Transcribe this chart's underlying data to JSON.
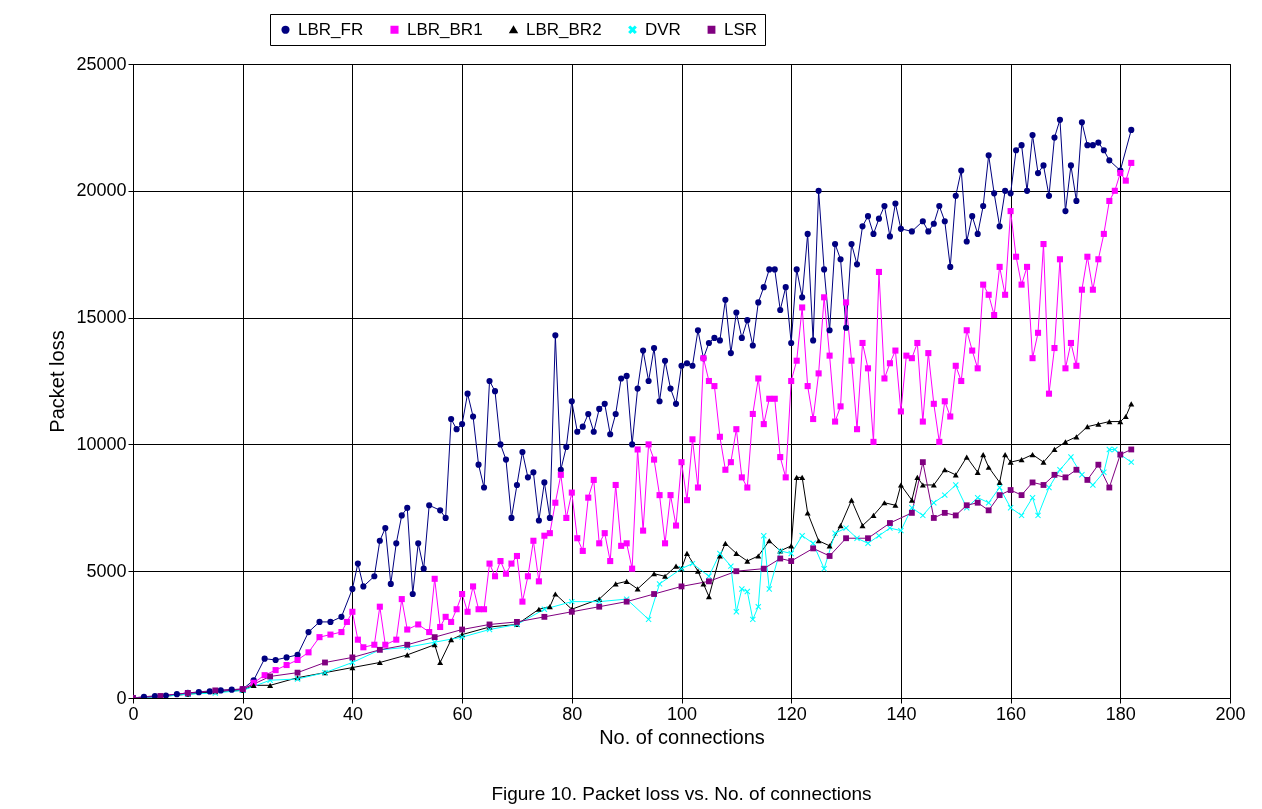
{
  "chart_data": {
    "type": "line",
    "xlabel": "No. of connections",
    "ylabel": "Packet loss",
    "annotations": [
      "Figure 10. Packet loss vs. No. of connections"
    ],
    "xlim": [
      0,
      200
    ],
    "xticks": [
      0,
      20,
      40,
      60,
      80,
      100,
      120,
      140,
      160,
      180,
      200
    ],
    "ylim": [
      0,
      25000
    ],
    "yticks": [
      0,
      5000,
      10000,
      15000,
      20000,
      25000
    ],
    "grid": true,
    "legend": "top",
    "line_style": "solid",
    "series": [
      {
        "name": "LBR_FR",
        "color": "#000080",
        "marker": "circle",
        "x": [
          0,
          2,
          4,
          6,
          8,
          10,
          12,
          14,
          16,
          18,
          20,
          22,
          24,
          26,
          28,
          30,
          32,
          34,
          36,
          38,
          40,
          41,
          42,
          44,
          45,
          46,
          47,
          48,
          49,
          50,
          51,
          52,
          53,
          54,
          56,
          57,
          58,
          59,
          60,
          61,
          62,
          63,
          64,
          65,
          66,
          67,
          68,
          69,
          70,
          71,
          72,
          73,
          74,
          75,
          76,
          77,
          78,
          79,
          80,
          81,
          82,
          83,
          84,
          85,
          86,
          87,
          88,
          89,
          90,
          91,
          92,
          93,
          94,
          95,
          96,
          97,
          98,
          99,
          100,
          101,
          102,
          103,
          104,
          105,
          106,
          107,
          108,
          109,
          110,
          111,
          112,
          113,
          114,
          115,
          116,
          117,
          118,
          119,
          120,
          121,
          122,
          123,
          124,
          125,
          126,
          127,
          128,
          129,
          130,
          131,
          132,
          133,
          134,
          135,
          136,
          137,
          138,
          139,
          140,
          142,
          144,
          145,
          146,
          147,
          148,
          149,
          150,
          151,
          152,
          153,
          154,
          155,
          156,
          157,
          158,
          159,
          160,
          161,
          162,
          163,
          164,
          165,
          166,
          167,
          168,
          169,
          170,
          171,
          172,
          173,
          174,
          175,
          176,
          177,
          178,
          180,
          182
        ],
        "values": [
          0,
          50,
          80,
          100,
          150,
          200,
          230,
          260,
          300,
          330,
          350,
          700,
          1550,
          1500,
          1600,
          1700,
          2600,
          3000,
          3000,
          3200,
          4300,
          5300,
          4400,
          4800,
          6200,
          6700,
          4500,
          6100,
          7200,
          7500,
          4100,
          6100,
          5100,
          7600,
          7400,
          7100,
          11000,
          10600,
          10800,
          12000,
          11100,
          9200,
          8300,
          12500,
          12100,
          10000,
          9400,
          7100,
          8400,
          9700,
          8700,
          8900,
          7000,
          8500,
          7100,
          14300,
          9000,
          9900,
          11700,
          10500,
          10700,
          11200,
          10500,
          11400,
          11600,
          10400,
          11200,
          12600,
          12700,
          10000,
          12200,
          13700,
          12500,
          13800,
          11700,
          13300,
          12200,
          11600,
          13100,
          13200,
          13100,
          14500,
          13400,
          14000,
          14200,
          14100,
          15700,
          13600,
          15200,
          14200,
          14900,
          13900,
          15600,
          16200,
          16900,
          16900,
          15300,
          16200,
          14000,
          16900,
          15800,
          18300,
          14100,
          20000,
          16900,
          14500,
          17900,
          17300,
          14600,
          17900,
          17100,
          18600,
          19000,
          18300,
          18900,
          19400,
          18200,
          19500,
          18500,
          18400,
          18800,
          18400,
          18700,
          19400,
          18800,
          17000,
          19800,
          20800,
          18000,
          19000,
          18300,
          19400,
          21400,
          19900,
          18600,
          20000,
          19900,
          21600,
          21800,
          20000,
          22200,
          20700,
          21000,
          19800,
          22100,
          22800,
          19200,
          21000,
          19600,
          22700,
          21800,
          21800,
          21900,
          21600,
          21200,
          20800,
          22400
        ]
      },
      {
        "name": "LBR_BR1",
        "color": "#ff00ff",
        "marker": "square",
        "x": [
          0,
          10,
          20,
          22,
          24,
          26,
          28,
          30,
          32,
          34,
          36,
          38,
          39,
          40,
          41,
          42,
          44,
          45,
          46,
          48,
          49,
          50,
          52,
          54,
          55,
          56,
          57,
          58,
          59,
          60,
          61,
          62,
          63,
          64,
          65,
          66,
          67,
          68,
          69,
          70,
          71,
          72,
          73,
          74,
          75,
          76,
          77,
          78,
          79,
          80,
          81,
          82,
          83,
          84,
          85,
          86,
          87,
          88,
          89,
          90,
          91,
          92,
          93,
          94,
          95,
          96,
          97,
          98,
          99,
          100,
          101,
          102,
          103,
          104,
          105,
          106,
          107,
          108,
          109,
          110,
          111,
          112,
          113,
          114,
          115,
          116,
          117,
          118,
          119,
          120,
          121,
          122,
          123,
          124,
          125,
          126,
          127,
          128,
          129,
          130,
          131,
          132,
          133,
          134,
          135,
          136,
          137,
          138,
          139,
          140,
          141,
          142,
          143,
          144,
          145,
          146,
          147,
          148,
          149,
          150,
          151,
          152,
          153,
          154,
          155,
          156,
          157,
          158,
          159,
          160,
          161,
          162,
          163,
          164,
          165,
          166,
          167,
          168,
          169,
          170,
          171,
          172,
          173,
          174,
          175,
          176,
          177,
          178,
          179,
          180,
          181,
          182
        ],
        "values": [
          0,
          180,
          330,
          600,
          900,
          1100,
          1300,
          1500,
          1800,
          2400,
          2500,
          2600,
          3000,
          3400,
          2300,
          2000,
          2100,
          3600,
          2100,
          2300,
          3900,
          2700,
          2900,
          2600,
          4700,
          2800,
          3200,
          3000,
          3500,
          4100,
          3400,
          4400,
          3500,
          3500,
          5300,
          4800,
          5400,
          4900,
          5300,
          5600,
          3800,
          4800,
          6200,
          4600,
          6400,
          6500,
          7700,
          8800,
          7100,
          8100,
          6300,
          5800,
          7900,
          8600,
          6100,
          6500,
          5400,
          8400,
          6000,
          6100,
          5100,
          9800,
          6600,
          10000,
          9400,
          8000,
          6100,
          8000,
          6800,
          9300,
          7800,
          10200,
          8300,
          13400,
          12500,
          12300,
          10300,
          9000,
          9300,
          10600,
          8700,
          8300,
          11200,
          12600,
          10800,
          11800,
          11800,
          9500,
          8700,
          12500,
          13300,
          15400,
          12300,
          11000,
          12800,
          15800,
          13500,
          10900,
          11500,
          15600,
          13300,
          10600,
          14000,
          13000,
          10100,
          16800,
          12600,
          13200,
          13700,
          11300,
          13500,
          13400,
          14000,
          10900,
          13600,
          11600,
          10100,
          11700,
          11100,
          13100,
          12500,
          14500,
          13700,
          13000,
          16300,
          15900,
          15100,
          17000,
          15900,
          19200,
          17400,
          16300,
          17000,
          13400,
          14400,
          17900,
          12000,
          13800,
          17300,
          13000,
          14000,
          13100,
          16100,
          17400,
          16100,
          17300,
          18300,
          19600,
          20000,
          20700,
          20400,
          21100
        ]
      },
      {
        "name": "LBR_BR2",
        "color": "#000000",
        "marker": "triangle",
        "x": [
          0,
          5,
          10,
          15,
          20,
          22,
          25,
          30,
          35,
          40,
          45,
          50,
          55,
          56,
          58,
          60,
          65,
          70,
          74,
          76,
          77,
          80,
          85,
          88,
          90,
          92,
          95,
          97,
          99,
          100,
          101,
          103,
          104,
          105,
          107,
          108,
          110,
          112,
          114,
          116,
          118,
          120,
          121,
          122,
          123,
          125,
          127,
          129,
          131,
          133,
          135,
          137,
          139,
          140,
          142,
          143,
          144,
          146,
          148,
          150,
          152,
          154,
          155,
          156,
          158,
          159,
          160,
          162,
          164,
          166,
          168,
          170,
          172,
          174,
          176,
          178,
          180,
          181,
          182
        ],
        "values": [
          0,
          60,
          150,
          250,
          300,
          500,
          500,
          800,
          1000,
          1200,
          1400,
          1700,
          2100,
          1400,
          2300,
          2500,
          2800,
          2900,
          3500,
          3600,
          4100,
          3500,
          3900,
          4500,
          4600,
          4300,
          4900,
          4800,
          5200,
          5100,
          5700,
          5000,
          4500,
          4000,
          5600,
          6100,
          5700,
          5400,
          5600,
          6200,
          5800,
          6000,
          8700,
          8700,
          7300,
          6200,
          6000,
          6800,
          7800,
          6800,
          7200,
          7700,
          7600,
          8400,
          7800,
          8700,
          8400,
          8400,
          9000,
          8800,
          9500,
          8900,
          9600,
          9100,
          8500,
          9600,
          9300,
          9400,
          9600,
          9300,
          9800,
          10100,
          10300,
          10700,
          10800,
          10900,
          10900,
          11100,
          11600
        ]
      },
      {
        "name": "DVR",
        "color": "#00ffff",
        "marker": "cross",
        "x": [
          0,
          5,
          10,
          15,
          20,
          25,
          30,
          35,
          40,
          45,
          50,
          55,
          60,
          65,
          70,
          75,
          80,
          85,
          90,
          94,
          96,
          100,
          102,
          105,
          107,
          109,
          110,
          111,
          112,
          113,
          114,
          115,
          116,
          118,
          120,
          122,
          124,
          126,
          128,
          130,
          132,
          134,
          136,
          138,
          140,
          142,
          144,
          146,
          148,
          150,
          152,
          154,
          156,
          158,
          160,
          162,
          164,
          165,
          167,
          169,
          171,
          173,
          175,
          177,
          178,
          179,
          180,
          182
        ],
        "values": [
          0,
          50,
          150,
          200,
          300,
          700,
          750,
          1000,
          1400,
          1900,
          2000,
          2200,
          2400,
          2700,
          2900,
          3500,
          3800,
          3800,
          3900,
          3100,
          4500,
          5100,
          5300,
          4800,
          5700,
          5200,
          3400,
          4300,
          4200,
          3100,
          3600,
          6400,
          4300,
          5800,
          5700,
          6400,
          6100,
          5100,
          6500,
          6700,
          6300,
          6100,
          6400,
          6700,
          6600,
          7500,
          7200,
          7700,
          8000,
          8400,
          7500,
          7900,
          7700,
          8300,
          7500,
          7200,
          7900,
          7200,
          8300,
          9000,
          9500,
          8800,
          8400,
          8900,
          9800,
          9800,
          9600,
          9300
        ]
      },
      {
        "name": "LSR",
        "color": "#800080",
        "marker": "square",
        "x": [
          0,
          5,
          10,
          15,
          20,
          25,
          30,
          35,
          40,
          45,
          50,
          55,
          60,
          65,
          70,
          75,
          80,
          85,
          90,
          95,
          100,
          105,
          110,
          115,
          118,
          120,
          124,
          127,
          130,
          134,
          138,
          142,
          144,
          146,
          148,
          150,
          152,
          154,
          156,
          158,
          160,
          162,
          164,
          166,
          168,
          170,
          172,
          174,
          176,
          178,
          180,
          182
        ],
        "values": [
          0,
          80,
          200,
          300,
          350,
          850,
          1000,
          1400,
          1600,
          1900,
          2100,
          2400,
          2700,
          2900,
          3000,
          3200,
          3400,
          3600,
          3800,
          4100,
          4400,
          4600,
          5000,
          5100,
          5500,
          5400,
          5900,
          5600,
          6300,
          6300,
          6900,
          7300,
          9300,
          7100,
          7300,
          7200,
          7600,
          7700,
          7400,
          8000,
          8200,
          8000,
          8500,
          8400,
          8800,
          8700,
          9000,
          8600,
          9200,
          8300,
          9600,
          9800
        ]
      }
    ]
  }
}
